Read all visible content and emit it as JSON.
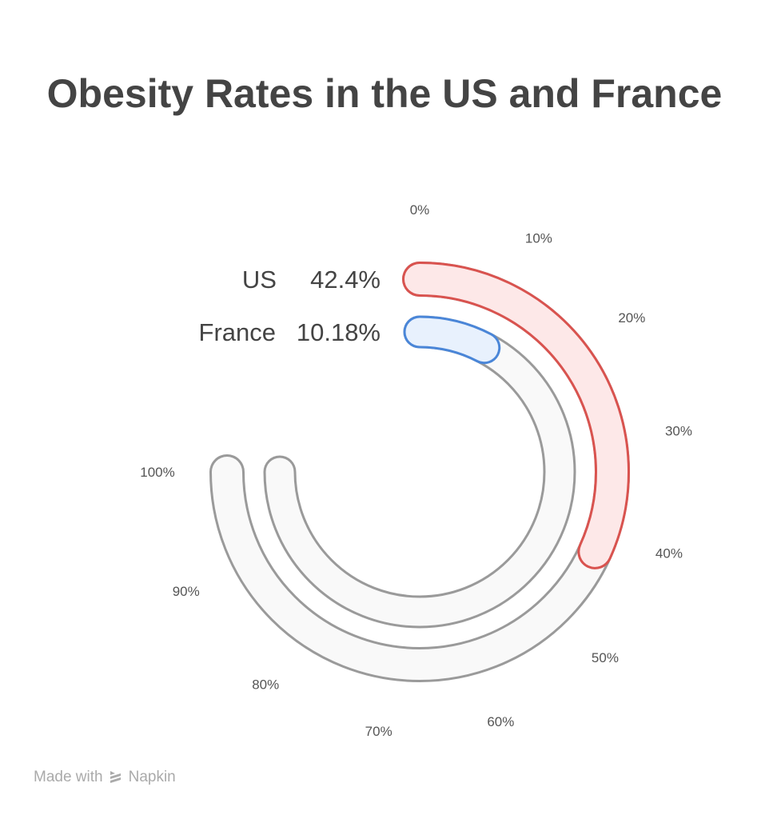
{
  "chart_data": {
    "type": "radial-bar",
    "title": "Obesity Rates in the US and France",
    "scale_max": 100,
    "sweep_degrees": 270,
    "tick_labels": [
      "0%",
      "10%",
      "20%",
      "30%",
      "40%",
      "50%",
      "60%",
      "70%",
      "80%",
      "90%",
      "100%"
    ],
    "series": [
      {
        "name": "US",
        "value": 42.4,
        "value_label": "42.4%",
        "color": "#d9534f",
        "fill": "#fde8e8"
      },
      {
        "name": "France",
        "value": 10.18,
        "value_label": "10.18%",
        "color": "#4a86d8",
        "fill": "#e8f1fd"
      }
    ],
    "track_color": "#9a9a9a",
    "track_fill": "#f9f9f9"
  },
  "footer": {
    "made_with": "Made with",
    "brand": "Napkin"
  }
}
